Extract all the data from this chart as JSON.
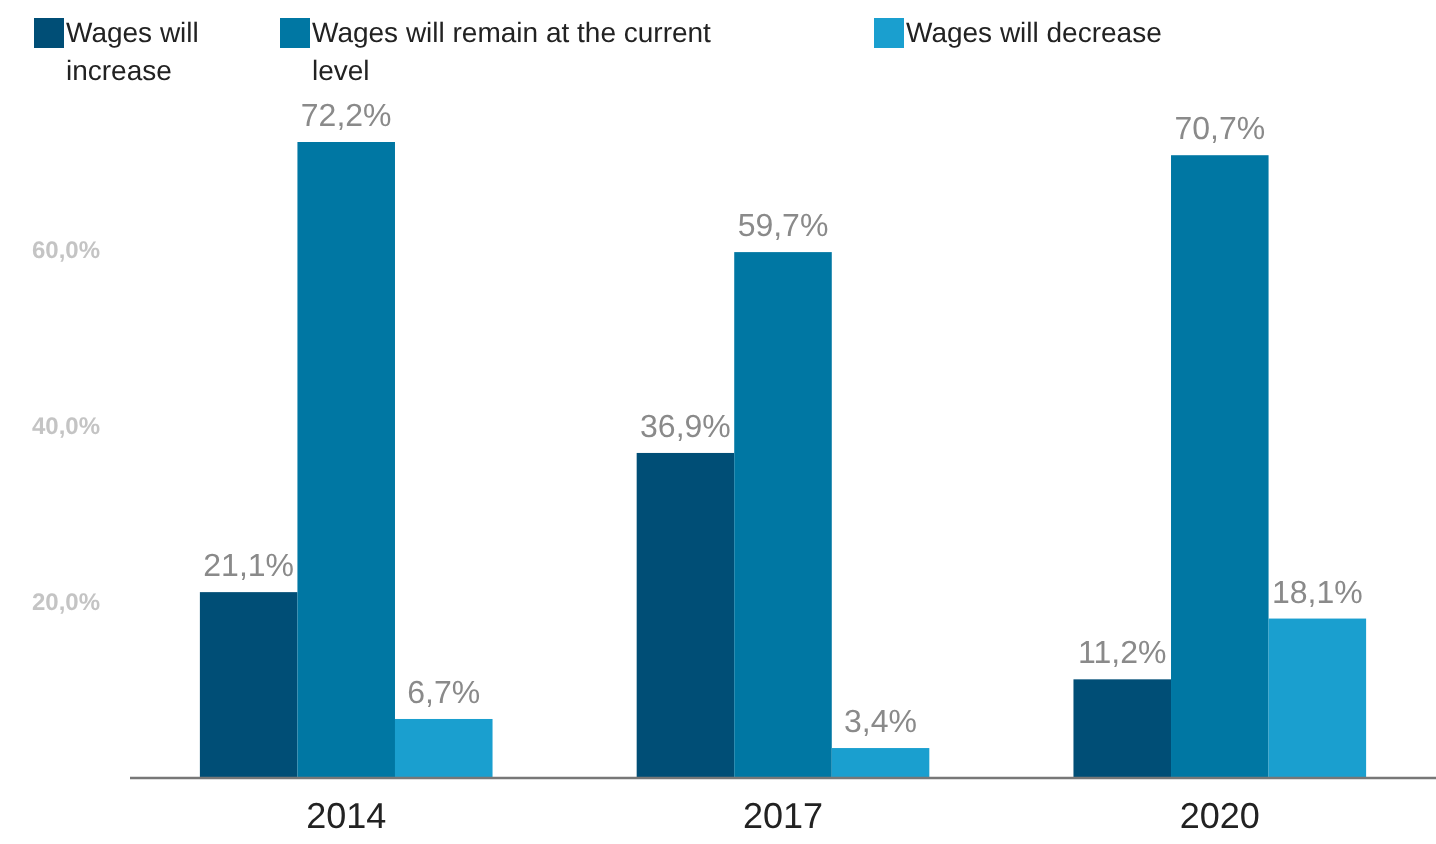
{
  "chart_data": {
    "type": "bar",
    "categories": [
      "2014",
      "2017",
      "2020"
    ],
    "series": [
      {
        "name": "Wages will increase",
        "color": "#004e76",
        "values": [
          21.1,
          36.9,
          11.2
        ],
        "value_labels": [
          "21,1%",
          "36,9%",
          "11,2%"
        ]
      },
      {
        "name": "Wages will remain at the current level",
        "color": "#0077a3",
        "values": [
          72.2,
          59.7,
          70.7
        ],
        "value_labels": [
          "72,2%",
          "59,7%",
          "70,7%"
        ]
      },
      {
        "name": "Wages will decrease",
        "color": "#1a9fcf",
        "values": [
          6.7,
          3.4,
          18.1
        ],
        "value_labels": [
          "6,7%",
          "3,4%",
          "18,1%"
        ]
      }
    ],
    "ylim": [
      0,
      72.2
    ],
    "yticks": [
      {
        "value": 20,
        "label": "20,0%"
      },
      {
        "value": 40,
        "label": "40,0%"
      },
      {
        "value": 60,
        "label": "60,0%"
      }
    ],
    "grid": false,
    "legend": "top"
  }
}
